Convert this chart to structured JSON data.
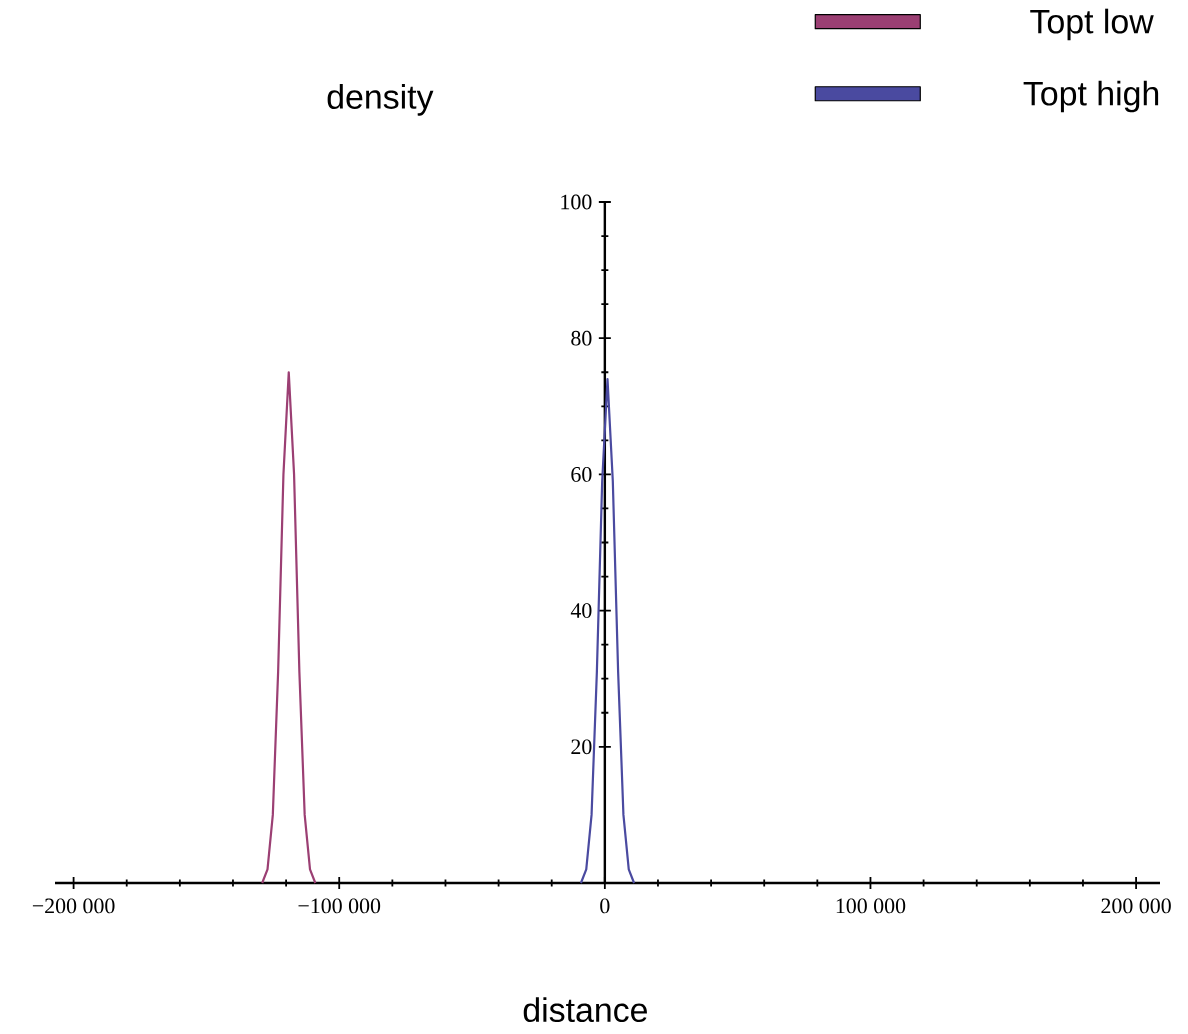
{
  "chart_data": {
    "type": "line",
    "xlabel": "distance",
    "ylabel": "density",
    "xlim": [
      -207000,
      209000
    ],
    "ylim": [
      0,
      100
    ],
    "xticks": [
      {
        "value": -200000,
        "label": "−200 000"
      },
      {
        "value": -100000,
        "label": "−100 000"
      },
      0,
      {
        "value": 100000,
        "label": "100 000"
      },
      {
        "value": 200000,
        "label": "200 000"
      }
    ],
    "yticks": [
      20,
      40,
      60,
      80,
      100
    ],
    "legend": "top right",
    "marker": "none",
    "line_style": "solid",
    "series": [
      {
        "name": "Topt low",
        "color": "#9b3f73",
        "x": [
          -129000,
          -127000,
          -125000,
          -123000,
          -121000,
          -119000,
          -117000,
          -115000,
          -113000,
          -111000,
          -109000
        ],
        "values": [
          0,
          2,
          10,
          31,
          60,
          75,
          60,
          31,
          10,
          2,
          0
        ]
      },
      {
        "name": "Topt high",
        "color": "#4a4aa0",
        "x": [
          -9000,
          -7000,
          -5000,
          -3000,
          -1000,
          1000,
          3000,
          5000,
          7000,
          9000,
          11000
        ],
        "values": [
          0,
          2,
          10,
          31,
          59,
          74,
          59,
          31,
          10,
          2,
          0
        ]
      }
    ]
  }
}
